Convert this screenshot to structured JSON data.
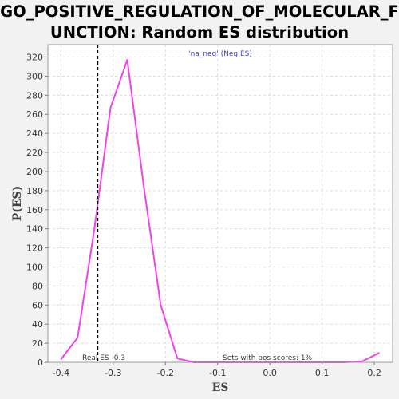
{
  "chart_data": {
    "type": "line",
    "title_lines": [
      "GO_POSITIVE_REGULATION_OF_MOLECULAR_F",
      "UNCTION: Random ES distribution"
    ],
    "xlabel": "ES",
    "ylabel": "P(ES)",
    "xlim": [
      -0.425,
      0.235
    ],
    "ylim": [
      0,
      333
    ],
    "x_ticks": [
      -0.4,
      -0.3,
      -0.2,
      -0.1,
      0.0,
      0.1,
      0.2
    ],
    "x_tick_labels": [
      "-0.4",
      "-0.3",
      "-0.2",
      "-0.1",
      "0.0",
      "0.1",
      "0.2"
    ],
    "y_ticks": [
      0,
      20,
      40,
      60,
      80,
      100,
      120,
      140,
      160,
      180,
      200,
      220,
      240,
      260,
      280,
      300,
      320
    ],
    "y_tick_labels": [
      "0",
      "20",
      "40",
      "60",
      "80",
      "100",
      "120",
      "140",
      "160",
      "180",
      "200",
      "220",
      "240",
      "260",
      "280",
      "300",
      "320"
    ],
    "grid": true,
    "legend": "'na_neg' (Neg ES)",
    "legend_position": "top-center",
    "series": [
      {
        "name": "'na_neg' (Neg ES)",
        "color": "#ee44ee",
        "x": [
          -0.4,
          -0.368,
          -0.336,
          -0.305,
          -0.273,
          -0.241,
          -0.209,
          -0.177,
          -0.146,
          -0.114,
          -0.082,
          -0.05,
          -0.018,
          0.013,
          0.045,
          0.077,
          0.109,
          0.141,
          0.177,
          0.21
        ],
        "y": [
          3,
          26,
          140,
          267,
          317,
          183,
          60,
          4,
          0,
          0,
          0,
          0,
          0,
          0,
          0,
          0,
          0,
          0,
          1,
          10
        ]
      }
    ],
    "real_es": -0.33,
    "annotations": {
      "real_es_label": "Real ES -0.3",
      "pos_scores_label": "Sets with pos scores: 1%"
    },
    "colors": {
      "background": "#f2f2f2",
      "plot_background": "#ffffff",
      "grid": "#dddddd",
      "line": "#ee44ee",
      "real_es_line": "#000000",
      "legend_text": "#3a3adb"
    }
  }
}
